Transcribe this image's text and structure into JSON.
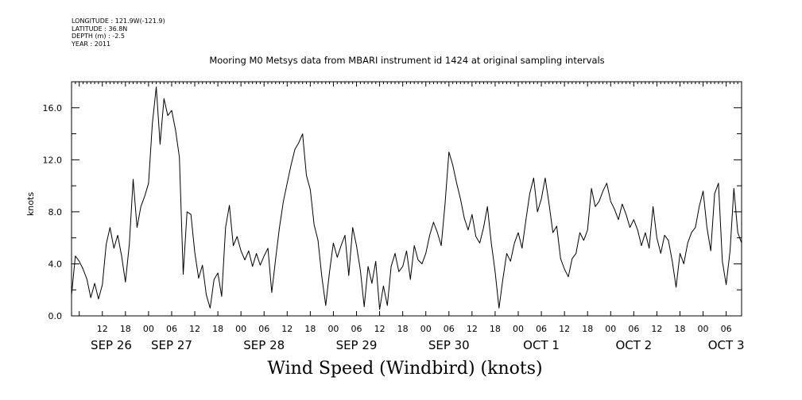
{
  "header": {
    "longitude": "LONGITUDE : 121.9W(-121.9)",
    "latitude": "LATITUDE : 36.8N",
    "depth": "DEPTH (m) : -2.5",
    "year": "YEAR : 2011"
  },
  "chart_data": {
    "type": "line",
    "title": "Mooring M0 Metsys data from MBARI instrument id 1424 at original sampling intervals",
    "xlabel": "Wind Speed (Windbird) (knots)",
    "ylabel": "knots",
    "ylim": [
      0,
      18
    ],
    "yticks": [
      0,
      4,
      8,
      12,
      16
    ],
    "ytick_labels": [
      "0.0",
      "4.0",
      "8.0",
      "12.0",
      "16.0"
    ],
    "xlim": [
      "2011-09-26T04:00",
      "2011-10-03T10:00"
    ],
    "xtick_hour_labels": [
      "12",
      "18",
      "00",
      "06",
      "12",
      "18",
      "00",
      "06",
      "12",
      "18",
      "00",
      "06",
      "12",
      "18",
      "00",
      "06",
      "12",
      "18",
      "00",
      "06",
      "12",
      "18",
      "00",
      "06",
      "12",
      "18",
      "00",
      "06"
    ],
    "xtick_day_labels": [
      "SEP 26",
      "SEP 27",
      "SEP 28",
      "SEP 29",
      "SEP 30",
      "OCT  1",
      "OCT  2",
      "OCT  3"
    ],
    "grid": false,
    "series": [
      {
        "color": "#000000",
        "points": [
          [
            "2011-09-26T04:00",
            1.6
          ],
          [
            "2011-09-26T05:00",
            4.6
          ],
          [
            "2011-09-26T06:00",
            4.2
          ],
          [
            "2011-09-26T07:00",
            3.6
          ],
          [
            "2011-09-26T08:00",
            2.8
          ],
          [
            "2011-09-26T09:00",
            1.4
          ],
          [
            "2011-09-26T10:00",
            2.5
          ],
          [
            "2011-09-26T11:00",
            1.3
          ],
          [
            "2011-09-26T12:00",
            2.4
          ],
          [
            "2011-09-26T13:00",
            5.5
          ],
          [
            "2011-09-26T14:00",
            6.8
          ],
          [
            "2011-09-26T15:00",
            5.2
          ],
          [
            "2011-09-26T16:00",
            6.2
          ],
          [
            "2011-09-26T17:00",
            4.6
          ],
          [
            "2011-09-26T18:00",
            2.6
          ],
          [
            "2011-09-26T19:00",
            5.5
          ],
          [
            "2011-09-26T20:00",
            10.5
          ],
          [
            "2011-09-26T21:00",
            6.8
          ],
          [
            "2011-09-26T22:00",
            8.4
          ],
          [
            "2011-09-26T23:00",
            9.2
          ],
          [
            "2011-09-27T00:00",
            10.2
          ],
          [
            "2011-09-27T01:00",
            14.8
          ],
          [
            "2011-09-27T02:00",
            17.6
          ],
          [
            "2011-09-27T03:00",
            13.2
          ],
          [
            "2011-09-27T04:00",
            16.7
          ],
          [
            "2011-09-27T05:00",
            15.4
          ],
          [
            "2011-09-27T06:00",
            15.8
          ],
          [
            "2011-09-27T07:00",
            14.3
          ],
          [
            "2011-09-27T08:00",
            12.2
          ],
          [
            "2011-09-27T09:00",
            3.2
          ],
          [
            "2011-09-27T10:00",
            8.0
          ],
          [
            "2011-09-27T11:00",
            7.8
          ],
          [
            "2011-09-27T12:00",
            4.9
          ],
          [
            "2011-09-27T13:00",
            2.9
          ],
          [
            "2011-09-27T14:00",
            3.9
          ],
          [
            "2011-09-27T15:00",
            1.6
          ],
          [
            "2011-09-27T16:00",
            0.6
          ],
          [
            "2011-09-27T17:00",
            2.8
          ],
          [
            "2011-09-27T18:00",
            3.3
          ],
          [
            "2011-09-27T19:00",
            1.5
          ],
          [
            "2011-09-27T20:00",
            6.8
          ],
          [
            "2011-09-27T21:00",
            8.5
          ],
          [
            "2011-09-27T22:00",
            5.4
          ],
          [
            "2011-09-27T23:00",
            6.1
          ],
          [
            "2011-09-28T00:00",
            5.0
          ],
          [
            "2011-09-28T01:00",
            4.3
          ],
          [
            "2011-09-28T02:00",
            5.0
          ],
          [
            "2011-09-28T03:00",
            3.8
          ],
          [
            "2011-09-28T04:00",
            4.8
          ],
          [
            "2011-09-28T05:00",
            3.9
          ],
          [
            "2011-09-28T06:00",
            4.6
          ],
          [
            "2011-09-28T07:00",
            5.2
          ],
          [
            "2011-09-28T08:00",
            1.8
          ],
          [
            "2011-09-28T09:00",
            4.4
          ],
          [
            "2011-09-28T10:00",
            6.8
          ],
          [
            "2011-09-28T11:00",
            8.8
          ],
          [
            "2011-09-28T12:00",
            10.2
          ],
          [
            "2011-09-28T13:00",
            11.6
          ],
          [
            "2011-09-28T14:00",
            12.8
          ],
          [
            "2011-09-28T15:00",
            13.3
          ],
          [
            "2011-09-28T16:00",
            14.0
          ],
          [
            "2011-09-28T17:00",
            10.8
          ],
          [
            "2011-09-28T18:00",
            9.7
          ],
          [
            "2011-09-28T19:00",
            7.0
          ],
          [
            "2011-09-28T20:00",
            5.8
          ],
          [
            "2011-09-28T21:00",
            3.0
          ],
          [
            "2011-09-28T22:00",
            0.8
          ],
          [
            "2011-09-28T23:00",
            3.4
          ],
          [
            "2011-09-29T00:00",
            5.6
          ],
          [
            "2011-09-29T01:00",
            4.5
          ],
          [
            "2011-09-29T02:00",
            5.4
          ],
          [
            "2011-09-29T03:00",
            6.2
          ],
          [
            "2011-09-29T04:00",
            3.1
          ],
          [
            "2011-09-29T05:00",
            6.8
          ],
          [
            "2011-09-29T06:00",
            5.4
          ],
          [
            "2011-09-29T07:00",
            3.5
          ],
          [
            "2011-09-29T08:00",
            0.7
          ],
          [
            "2011-09-29T09:00",
            3.8
          ],
          [
            "2011-09-29T10:00",
            2.5
          ],
          [
            "2011-09-29T11:00",
            4.2
          ],
          [
            "2011-09-29T12:00",
            0.5
          ],
          [
            "2011-09-29T13:00",
            2.3
          ],
          [
            "2011-09-29T14:00",
            0.8
          ],
          [
            "2011-09-29T15:00",
            3.8
          ],
          [
            "2011-09-29T16:00",
            4.8
          ],
          [
            "2011-09-29T17:00",
            3.4
          ],
          [
            "2011-09-29T18:00",
            3.8
          ],
          [
            "2011-09-29T19:00",
            5.0
          ],
          [
            "2011-09-29T20:00",
            2.8
          ],
          [
            "2011-09-29T21:00",
            5.4
          ],
          [
            "2011-09-29T22:00",
            4.3
          ],
          [
            "2011-09-29T23:00",
            4.0
          ],
          [
            "2011-09-30T00:00",
            4.8
          ],
          [
            "2011-09-30T01:00",
            6.2
          ],
          [
            "2011-09-30T02:00",
            7.2
          ],
          [
            "2011-09-30T03:00",
            6.4
          ],
          [
            "2011-09-30T04:00",
            5.4
          ],
          [
            "2011-09-30T05:00",
            8.6
          ],
          [
            "2011-09-30T06:00",
            12.6
          ],
          [
            "2011-09-30T07:00",
            11.6
          ],
          [
            "2011-09-30T08:00",
            10.2
          ],
          [
            "2011-09-30T09:00",
            9.0
          ],
          [
            "2011-09-30T10:00",
            7.5
          ],
          [
            "2011-09-30T11:00",
            6.6
          ],
          [
            "2011-09-30T12:00",
            7.8
          ],
          [
            "2011-09-30T13:00",
            6.1
          ],
          [
            "2011-09-30T14:00",
            5.6
          ],
          [
            "2011-09-30T15:00",
            6.8
          ],
          [
            "2011-09-30T16:00",
            8.4
          ],
          [
            "2011-09-30T17:00",
            5.6
          ],
          [
            "2011-09-30T18:00",
            3.4
          ],
          [
            "2011-09-30T19:00",
            0.6
          ],
          [
            "2011-09-30T20:00",
            2.8
          ],
          [
            "2011-09-30T21:00",
            4.8
          ],
          [
            "2011-09-30T22:00",
            4.2
          ],
          [
            "2011-09-30T23:00",
            5.6
          ],
          [
            "2011-10-01T00:00",
            6.4
          ],
          [
            "2011-10-01T01:00",
            5.2
          ],
          [
            "2011-10-01T02:00",
            7.4
          ],
          [
            "2011-10-01T03:00",
            9.4
          ],
          [
            "2011-10-01T04:00",
            10.6
          ],
          [
            "2011-10-01T05:00",
            8.0
          ],
          [
            "2011-10-01T06:00",
            9.0
          ],
          [
            "2011-10-01T07:00",
            10.6
          ],
          [
            "2011-10-01T08:00",
            8.6
          ],
          [
            "2011-10-01T09:00",
            6.4
          ],
          [
            "2011-10-01T10:00",
            6.9
          ],
          [
            "2011-10-01T11:00",
            4.4
          ],
          [
            "2011-10-01T12:00",
            3.6
          ],
          [
            "2011-10-01T13:00",
            3.0
          ],
          [
            "2011-10-01T14:00",
            4.4
          ],
          [
            "2011-10-01T15:00",
            4.8
          ],
          [
            "2011-10-01T16:00",
            6.4
          ],
          [
            "2011-10-01T17:00",
            5.8
          ],
          [
            "2011-10-01T18:00",
            6.6
          ],
          [
            "2011-10-01T19:00",
            9.8
          ],
          [
            "2011-10-01T20:00",
            8.4
          ],
          [
            "2011-10-01T21:00",
            8.8
          ],
          [
            "2011-10-01T22:00",
            9.6
          ],
          [
            "2011-10-01T23:00",
            10.2
          ],
          [
            "2011-10-02T00:00",
            8.8
          ],
          [
            "2011-10-02T01:00",
            8.2
          ],
          [
            "2011-10-02T02:00",
            7.4
          ],
          [
            "2011-10-02T03:00",
            8.6
          ],
          [
            "2011-10-02T04:00",
            7.8
          ],
          [
            "2011-10-02T05:00",
            6.8
          ],
          [
            "2011-10-02T06:00",
            7.4
          ],
          [
            "2011-10-02T07:00",
            6.6
          ],
          [
            "2011-10-02T08:00",
            5.4
          ],
          [
            "2011-10-02T09:00",
            6.4
          ],
          [
            "2011-10-02T10:00",
            5.2
          ],
          [
            "2011-10-02T11:00",
            8.4
          ],
          [
            "2011-10-02T12:00",
            6.0
          ],
          [
            "2011-10-02T13:00",
            4.8
          ],
          [
            "2011-10-02T14:00",
            6.2
          ],
          [
            "2011-10-02T15:00",
            5.8
          ],
          [
            "2011-10-02T16:00",
            4.2
          ],
          [
            "2011-10-02T17:00",
            2.2
          ],
          [
            "2011-10-02T18:00",
            4.8
          ],
          [
            "2011-10-02T19:00",
            4.0
          ],
          [
            "2011-10-02T20:00",
            5.6
          ],
          [
            "2011-10-02T21:00",
            6.4
          ],
          [
            "2011-10-02T22:00",
            6.8
          ],
          [
            "2011-10-02T23:00",
            8.4
          ],
          [
            "2011-10-03T00:00",
            9.6
          ],
          [
            "2011-10-03T01:00",
            6.8
          ],
          [
            "2011-10-03T02:00",
            5.0
          ],
          [
            "2011-10-03T03:00",
            9.4
          ],
          [
            "2011-10-03T04:00",
            10.2
          ],
          [
            "2011-10-03T05:00",
            4.2
          ],
          [
            "2011-10-03T06:00",
            2.4
          ],
          [
            "2011-10-03T07:00",
            5.0
          ],
          [
            "2011-10-03T08:00",
            9.8
          ],
          [
            "2011-10-03T09:00",
            6.4
          ],
          [
            "2011-10-03T10:00",
            5.6
          ]
        ]
      }
    ]
  }
}
